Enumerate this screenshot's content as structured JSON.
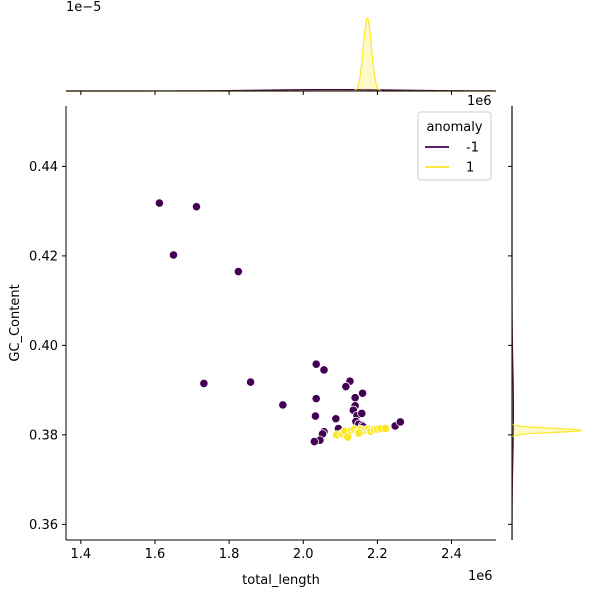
{
  "chart_data": {
    "type": "scatter",
    "title": "",
    "xlabel": "total_length",
    "ylabel": "GC_Content",
    "x_offset_label": "1e6",
    "top_marginal_offset_label": "1e−5",
    "right_marginal_offset_label": "1e6",
    "xlim": [
      1.36,
      2.52
    ],
    "ylim": [
      0.3565,
      0.4535
    ],
    "xticks": [
      1.4,
      1.6,
      1.8,
      2.0,
      2.2,
      2.4
    ],
    "xtick_labels": [
      "1.4",
      "1.6",
      "1.8",
      "2.0",
      "2.2",
      "2.4"
    ],
    "yticks": [
      0.36,
      0.38,
      0.4,
      0.42,
      0.44
    ],
    "ytick_labels": [
      "0.36",
      "0.38",
      "0.40",
      "0.42",
      "0.44"
    ],
    "grid": false,
    "legend": {
      "title": "anomaly",
      "placement": "top-right",
      "entries": [
        {
          "label": "-1",
          "color": "#440154"
        },
        {
          "label": "1",
          "color": "#fde725"
        }
      ]
    },
    "series": [
      {
        "name": "-1",
        "color": "#440154",
        "points": [
          [
            1.612,
            0.4318
          ],
          [
            1.712,
            0.431
          ],
          [
            1.65,
            0.4202
          ],
          [
            1.825,
            0.4165
          ],
          [
            1.732,
            0.3915
          ],
          [
            1.858,
            0.3918
          ],
          [
            1.945,
            0.3867
          ],
          [
            2.035,
            0.3958
          ],
          [
            2.056,
            0.3945
          ],
          [
            2.035,
            0.3881
          ],
          [
            2.033,
            0.3842
          ],
          [
            2.088,
            0.3836
          ],
          [
            2.126,
            0.392
          ],
          [
            2.115,
            0.3908
          ],
          [
            2.16,
            0.3893
          ],
          [
            2.14,
            0.3883
          ],
          [
            2.14,
            0.3865
          ],
          [
            2.135,
            0.3855
          ],
          [
            2.145,
            0.3843
          ],
          [
            2.158,
            0.3848
          ],
          [
            2.142,
            0.383
          ],
          [
            2.15,
            0.3824
          ],
          [
            2.16,
            0.3821
          ],
          [
            2.162,
            0.3818
          ],
          [
            2.095,
            0.3814
          ],
          [
            2.056,
            0.3807
          ],
          [
            2.052,
            0.3802
          ],
          [
            2.045,
            0.3788
          ],
          [
            2.03,
            0.3785
          ],
          [
            2.248,
            0.382
          ],
          [
            2.262,
            0.3829
          ]
        ]
      },
      {
        "name": "1",
        "color": "#fde725",
        "points": [
          [
            2.09,
            0.38
          ],
          [
            2.105,
            0.3803
          ],
          [
            2.112,
            0.3808
          ],
          [
            2.12,
            0.3795
          ],
          [
            2.13,
            0.381
          ],
          [
            2.138,
            0.3812
          ],
          [
            2.148,
            0.3807
          ],
          [
            2.156,
            0.3812
          ],
          [
            2.165,
            0.381
          ],
          [
            2.175,
            0.3813
          ],
          [
            2.182,
            0.3808
          ],
          [
            2.192,
            0.3812
          ],
          [
            2.2,
            0.3813
          ],
          [
            2.21,
            0.3814
          ],
          [
            2.222,
            0.3814
          ],
          [
            2.15,
            0.3804
          ]
        ]
      }
    ],
    "marginal_top": {
      "series": [
        {
          "name": "-1",
          "color": "#440154",
          "center": 2.08,
          "width": 0.18,
          "peak": 0.02
        },
        {
          "name": "1",
          "color": "#fde725",
          "center": 2.173,
          "width": 0.011,
          "peak": 1.0
        }
      ]
    },
    "marginal_right": {
      "series": [
        {
          "name": "-1",
          "color": "#440154",
          "center": 0.385,
          "width": 0.01,
          "peak": 0.02
        },
        {
          "name": "1",
          "color": "#fde725",
          "center": 0.381,
          "width": 0.00045,
          "peak": 1.0
        }
      ]
    }
  }
}
